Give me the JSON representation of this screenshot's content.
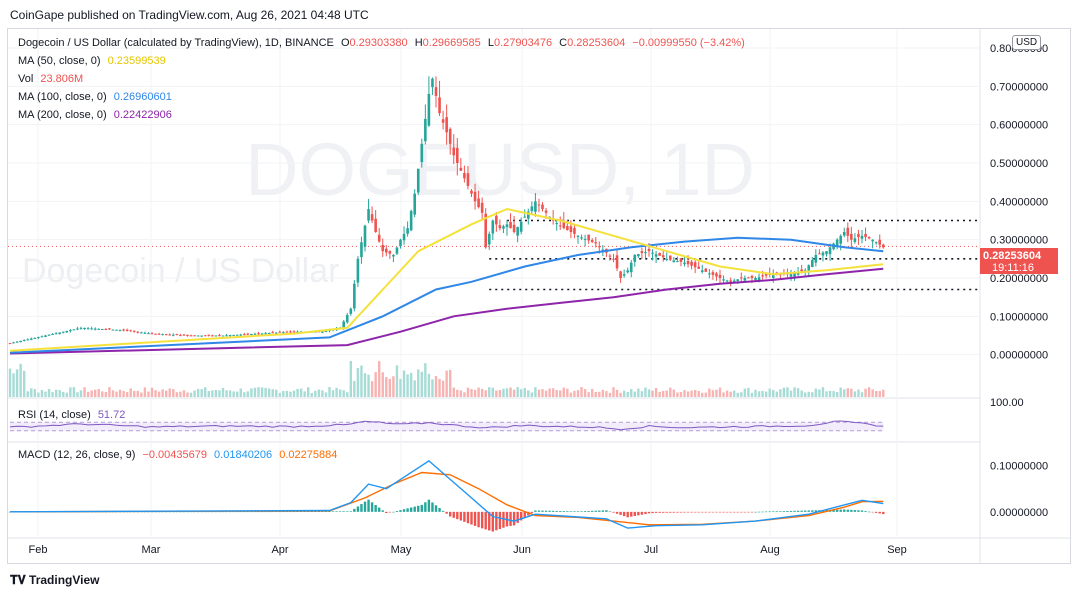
{
  "header": {
    "published": "CoinGape published on TradingView.com, Aug 26, 2021 04:48 UTC"
  },
  "legend": {
    "symbol": "Dogecoin / US Dollar (calculated by TradingView), 1D, BINANCE",
    "o_label": "O",
    "o_value": "0.29303380",
    "h_label": "H",
    "h_value": "0.29669585",
    "l_label": "L",
    "l_value": "0.27903476",
    "c_label": "C",
    "c_value": "0.28253604",
    "change": "−0.00999550 (−3.42%)",
    "ma50_label": "MA (50, close, 0)",
    "ma50_value": "0.23599539",
    "vol_label": "Vol",
    "vol_value": "23.806M",
    "ma100_label": "MA (100, close, 0)",
    "ma100_value": "0.26960601",
    "ma200_label": "MA (200, close, 0)",
    "ma200_value": "0.22422906",
    "rsi_label": "RSI (14, close)",
    "rsi_value": "51.72",
    "macd_label": "MACD (12, 26, close, 9)",
    "macd_hist": "−0.00435679",
    "macd_line": "0.01840206",
    "macd_signal": "0.02275884"
  },
  "currency_button": "USD",
  "watermark": {
    "big": "DOGEUSD, 1D",
    "small": "Dogecoin / US Dollar"
  },
  "price_tag": {
    "price": "0.28253604",
    "countdown": "19:11:16"
  },
  "rsi_axis_label": "100.00",
  "brand": "TradingView",
  "colors": {
    "up": "#26a69a",
    "down": "#ef5350",
    "ma50": "#f5e13b",
    "ma100": "#2f87e8",
    "ma200": "#8e24aa",
    "rsi": "#7e57c2",
    "macd": "#2196f3",
    "signal": "#ff6d00"
  },
  "chart_data": [
    {
      "type": "candlestick",
      "title": "Dogecoin / US Dollar, 1D, BINANCE",
      "x_ticks": [
        "Feb",
        "Mar",
        "Apr",
        "May",
        "Jun",
        "Jul",
        "Aug",
        "Sep"
      ],
      "y_ticks": [
        "0.80000000",
        "0.70000000",
        "0.60000000",
        "0.50000000",
        "0.40000000",
        "0.30000000",
        "0.20000000",
        "0.10000000",
        "0.00000000"
      ],
      "ylim": [
        -0.04,
        0.8
      ],
      "close_approx": [
        [
          0,
          0.03
        ],
        [
          10,
          0.05
        ],
        [
          20,
          0.07
        ],
        [
          30,
          0.065
        ],
        [
          40,
          0.055
        ],
        [
          50,
          0.05
        ],
        [
          60,
          0.05
        ],
        [
          70,
          0.055
        ],
        [
          80,
          0.06
        ],
        [
          88,
          0.06
        ],
        [
          93,
          0.07
        ],
        [
          96,
          0.12
        ],
        [
          98,
          0.25
        ],
        [
          101,
          0.38
        ],
        [
          103,
          0.32
        ],
        [
          105,
          0.27
        ],
        [
          108,
          0.26
        ],
        [
          110,
          0.3
        ],
        [
          112,
          0.33
        ],
        [
          114,
          0.42
        ],
        [
          116,
          0.55
        ],
        [
          118,
          0.68
        ],
        [
          119,
          0.72
        ],
        [
          121,
          0.63
        ],
        [
          123,
          0.58
        ],
        [
          125,
          0.52
        ],
        [
          127,
          0.48
        ],
        [
          129,
          0.44
        ],
        [
          131,
          0.4
        ],
        [
          133,
          0.37
        ],
        [
          134,
          0.28
        ],
        [
          136,
          0.35
        ],
        [
          138,
          0.33
        ],
        [
          140,
          0.34
        ],
        [
          142,
          0.32
        ],
        [
          145,
          0.36
        ],
        [
          148,
          0.4
        ],
        [
          150,
          0.38
        ],
        [
          153,
          0.35
        ],
        [
          156,
          0.33
        ],
        [
          160,
          0.31
        ],
        [
          165,
          0.29
        ],
        [
          170,
          0.25
        ],
        [
          172,
          0.2
        ],
        [
          174,
          0.22
        ],
        [
          176,
          0.26
        ],
        [
          180,
          0.27
        ],
        [
          185,
          0.25
        ],
        [
          190,
          0.24
        ],
        [
          195,
          0.22
        ],
        [
          200,
          0.2
        ],
        [
          203,
          0.19
        ],
        [
          206,
          0.2
        ],
        [
          210,
          0.2
        ],
        [
          215,
          0.21
        ],
        [
          220,
          0.21
        ],
        [
          224,
          0.22
        ],
        [
          227,
          0.26
        ],
        [
          230,
          0.27
        ],
        [
          233,
          0.3
        ],
        [
          235,
          0.32
        ],
        [
          237,
          0.3
        ],
        [
          240,
          0.31
        ],
        [
          243,
          0.3
        ],
        [
          246,
          0.28
        ]
      ],
      "ma50_approx": [
        [
          0,
          0.01
        ],
        [
          80,
          0.055
        ],
        [
          95,
          0.07
        ],
        [
          105,
          0.17
        ],
        [
          115,
          0.27
        ],
        [
          130,
          0.34
        ],
        [
          140,
          0.38
        ],
        [
          155,
          0.35
        ],
        [
          170,
          0.31
        ],
        [
          185,
          0.27
        ],
        [
          200,
          0.23
        ],
        [
          215,
          0.21
        ],
        [
          230,
          0.22
        ],
        [
          246,
          0.236
        ]
      ],
      "ma100_approx": [
        [
          0,
          0.005
        ],
        [
          90,
          0.045
        ],
        [
          105,
          0.1
        ],
        [
          120,
          0.17
        ],
        [
          130,
          0.19
        ],
        [
          145,
          0.23
        ],
        [
          160,
          0.26
        ],
        [
          175,
          0.28
        ],
        [
          190,
          0.295
        ],
        [
          205,
          0.305
        ],
        [
          220,
          0.3
        ],
        [
          235,
          0.28
        ],
        [
          246,
          0.27
        ]
      ],
      "ma200_approx": [
        [
          0,
          0.003
        ],
        [
          95,
          0.025
        ],
        [
          110,
          0.06
        ],
        [
          125,
          0.1
        ],
        [
          140,
          0.12
        ],
        [
          155,
          0.135
        ],
        [
          170,
          0.15
        ],
        [
          185,
          0.17
        ],
        [
          200,
          0.185
        ],
        [
          215,
          0.195
        ],
        [
          230,
          0.21
        ],
        [
          246,
          0.224
        ]
      ],
      "levels": [
        0.35,
        0.25,
        0.17
      ]
    },
    {
      "type": "line",
      "title": "RSI (14, close)",
      "ylim": [
        0,
        100
      ],
      "y_ticks": [
        "100.00"
      ],
      "values_approx": [
        [
          0,
          46
        ],
        [
          20,
          62
        ],
        [
          40,
          48
        ],
        [
          60,
          52
        ],
        [
          80,
          50
        ],
        [
          95,
          58
        ],
        [
          100,
          74
        ],
        [
          110,
          60
        ],
        [
          118,
          68
        ],
        [
          125,
          56
        ],
        [
          134,
          44
        ],
        [
          145,
          55
        ],
        [
          155,
          50
        ],
        [
          165,
          47
        ],
        [
          172,
          38
        ],
        [
          180,
          51
        ],
        [
          190,
          45
        ],
        [
          200,
          48
        ],
        [
          210,
          50
        ],
        [
          225,
          55
        ],
        [
          233,
          74
        ],
        [
          240,
          64
        ],
        [
          246,
          52
        ]
      ]
    },
    {
      "type": "line",
      "title": "MACD (12, 26, close, 9)",
      "y_ticks": [
        "0.10000000",
        "0.00000000"
      ],
      "ylim": [
        -0.05,
        0.14
      ],
      "macd_approx": [
        [
          0,
          0
        ],
        [
          90,
          0.003
        ],
        [
          96,
          0.02
        ],
        [
          101,
          0.06
        ],
        [
          106,
          0.05
        ],
        [
          112,
          0.08
        ],
        [
          118,
          0.11
        ],
        [
          124,
          0.07
        ],
        [
          130,
          0.03
        ],
        [
          136,
          -0.01
        ],
        [
          142,
          -0.02
        ],
        [
          148,
          -0.005
        ],
        [
          158,
          -0.01
        ],
        [
          168,
          -0.015
        ],
        [
          174,
          -0.035
        ],
        [
          182,
          -0.03
        ],
        [
          195,
          -0.028
        ],
        [
          210,
          -0.02
        ],
        [
          225,
          -0.005
        ],
        [
          235,
          0.015
        ],
        [
          240,
          0.025
        ],
        [
          246,
          0.018
        ]
      ],
      "signal_approx": [
        [
          0,
          0
        ],
        [
          90,
          0.002
        ],
        [
          100,
          0.03
        ],
        [
          108,
          0.06
        ],
        [
          116,
          0.085
        ],
        [
          124,
          0.08
        ],
        [
          132,
          0.05
        ],
        [
          140,
          0.015
        ],
        [
          148,
          -0.008
        ],
        [
          160,
          -0.012
        ],
        [
          170,
          -0.02
        ],
        [
          180,
          -0.028
        ],
        [
          195,
          -0.027
        ],
        [
          210,
          -0.02
        ],
        [
          225,
          -0.008
        ],
        [
          235,
          0.01
        ],
        [
          240,
          0.022
        ],
        [
          246,
          0.0228
        ]
      ],
      "hist_last": -0.00435679
    }
  ]
}
